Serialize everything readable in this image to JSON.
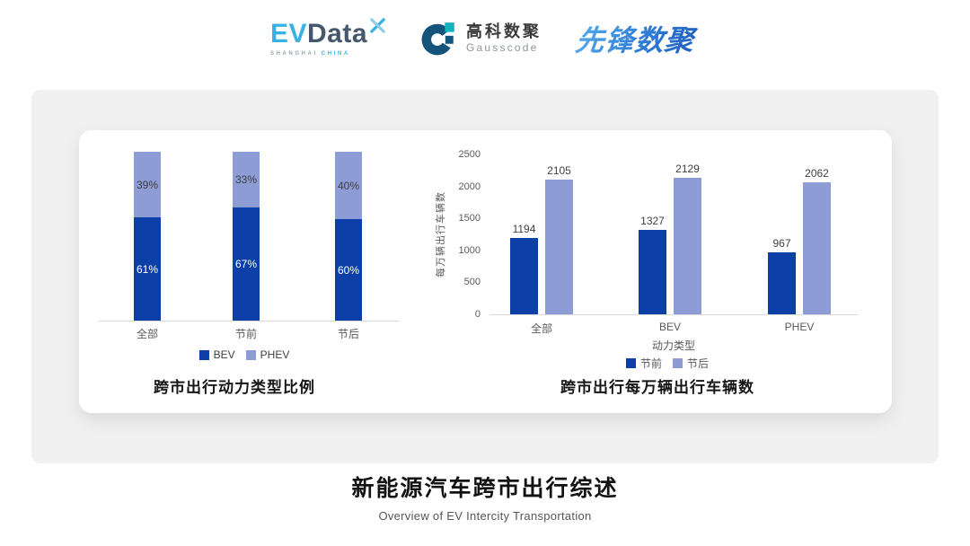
{
  "header": {
    "evdata": {
      "ev": "EV",
      "data": "Data",
      "sub1": "SHANGHAI",
      "sub2": "CHINA"
    },
    "gausscode": {
      "cn": "高科数聚",
      "en": "Gausscode"
    },
    "pioneer": {
      "text": "先锋数聚"
    }
  },
  "chart_data": [
    {
      "id": "power-type-ratio",
      "type": "bar",
      "stacked": true,
      "title": "跨市出行动力类型比例",
      "categories": [
        "全部",
        "节前",
        "节后"
      ],
      "series": [
        {
          "name": "BEV",
          "color": "#0C40A8",
          "label_color": "#FFFFFF",
          "values": [
            61,
            67,
            60
          ]
        },
        {
          "name": "PHEV",
          "color": "#8D9CD4",
          "label_color": "#404040",
          "values": [
            39,
            33,
            40
          ]
        }
      ],
      "value_suffix": "%",
      "ylim": [
        0,
        100
      ],
      "xlabel": "",
      "ylabel": "",
      "grid": false,
      "legend_position": "bottom",
      "legend_text_color": "#404040"
    },
    {
      "id": "trips-per-10k",
      "type": "bar",
      "stacked": false,
      "title": "跨市出行每万辆出行车辆数",
      "categories": [
        "全部",
        "BEV",
        "PHEV"
      ],
      "series": [
        {
          "name": "节前",
          "color": "#0C40A8",
          "values": [
            1194,
            1327,
            967
          ]
        },
        {
          "name": "节后",
          "color": "#8D9CD4",
          "values": [
            2105,
            2129,
            2062
          ]
        }
      ],
      "value_suffix": "",
      "ylim": [
        0,
        2500
      ],
      "yticks": [
        0,
        500,
        1000,
        1500,
        2000,
        2500
      ],
      "xlabel": "动力类型",
      "ylabel": "每万辆出行车辆数",
      "grid": false,
      "legend_position": "bottom",
      "legend_text_color": "#595959"
    }
  ],
  "footer": {
    "title": "新能源汽车跨市出行综述",
    "subtitle": "Overview of EV Intercity Transportation"
  }
}
